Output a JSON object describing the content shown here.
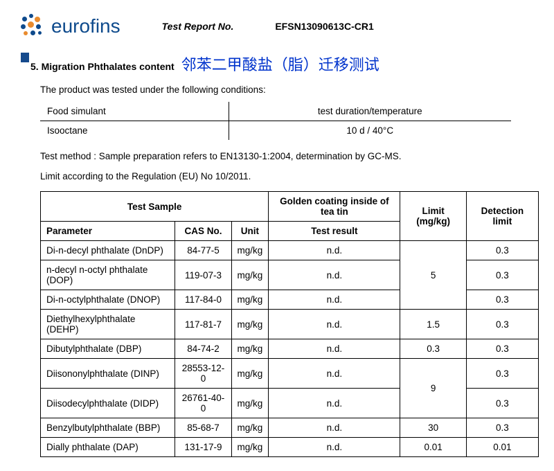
{
  "header": {
    "logo_text": "eurofins",
    "report_label": "Test Report No.",
    "report_no": "EFSN13090613C-CR1",
    "logo_colors": {
      "blue": "#0e4a8c",
      "orange": "#e98b2e"
    }
  },
  "section": {
    "number_title": "5.  Migration Phthalates content",
    "cjk_title": "邻苯二甲酸盐（脂）迁移测试"
  },
  "intro": "The product was tested under the following conditions:",
  "conditions": {
    "col1_head": "Food simulant",
    "col2_head": "test duration/temperature",
    "col1_val": "Isooctane",
    "col2_val": "10 d / 40°C"
  },
  "method": "Test method   : Sample preparation refers to EN13130-1:2004, determination by GC-MS.",
  "limit_line": "Limit according to the Regulation (EU) No 10/2011.",
  "table": {
    "headers": {
      "test_sample": "Test Sample",
      "golden": "Golden coating inside of tea tin",
      "limit": "Limit (mg/kg)",
      "detection": "Detection limit",
      "parameter": "Parameter",
      "cas": "CAS No.",
      "unit": "Unit",
      "result": "Test result"
    },
    "rows": [
      {
        "param": "Di-n-decyl phthalate (DnDP)",
        "cas": "84-77-5",
        "unit": "mg/kg",
        "result": "n.d.",
        "limit": "5",
        "det": "0.3"
      },
      {
        "param": "n-decyl n-octyl phthalate (DOP)",
        "cas": "119-07-3",
        "unit": "mg/kg",
        "result": "n.d.",
        "limit": "5",
        "det": "0.3"
      },
      {
        "param": "Di-n-octylphthalate (DNOP)",
        "cas": "117-84-0",
        "unit": "mg/kg",
        "result": "n.d.",
        "limit": "5",
        "det": "0.3"
      },
      {
        "param": "Diethylhexylphthalate (DEHP)",
        "cas": "117-81-7",
        "unit": "mg/kg",
        "result": "n.d.",
        "limit": "1.5",
        "det": "0.3"
      },
      {
        "param": "Dibutylphthalate (DBP)",
        "cas": "84-74-2",
        "unit": "mg/kg",
        "result": "n.d.",
        "limit": "0.3",
        "det": "0.3"
      },
      {
        "param": "Diisononylphthalate (DINP)",
        "cas": "28553-12-0",
        "unit": "mg/kg",
        "result": "n.d.",
        "limit": "9",
        "det": "0.3"
      },
      {
        "param": "Diisodecylphthalate (DIDP)",
        "cas": "26761-40-0",
        "unit": "mg/kg",
        "result": "n.d.",
        "limit": "9",
        "det": "0.3"
      },
      {
        "param": "Benzylbutylphthalate (BBP)",
        "cas": "85-68-7",
        "unit": "mg/kg",
        "result": "n.d.",
        "limit": "30",
        "det": "0.3"
      },
      {
        "param": "Dially phthalate (DAP)",
        "cas": "131-17-9",
        "unit": "mg/kg",
        "result": "n.d.",
        "limit": "0.01",
        "det": "0.01"
      }
    ],
    "limit_spans": [
      {
        "start": 0,
        "span": 3,
        "value": "5"
      },
      {
        "start": 3,
        "span": 1,
        "value": "1.5"
      },
      {
        "start": 4,
        "span": 1,
        "value": "0.3"
      },
      {
        "start": 5,
        "span": 2,
        "value": "9"
      },
      {
        "start": 7,
        "span": 1,
        "value": "30"
      },
      {
        "start": 8,
        "span": 1,
        "value": "0.01"
      }
    ]
  }
}
